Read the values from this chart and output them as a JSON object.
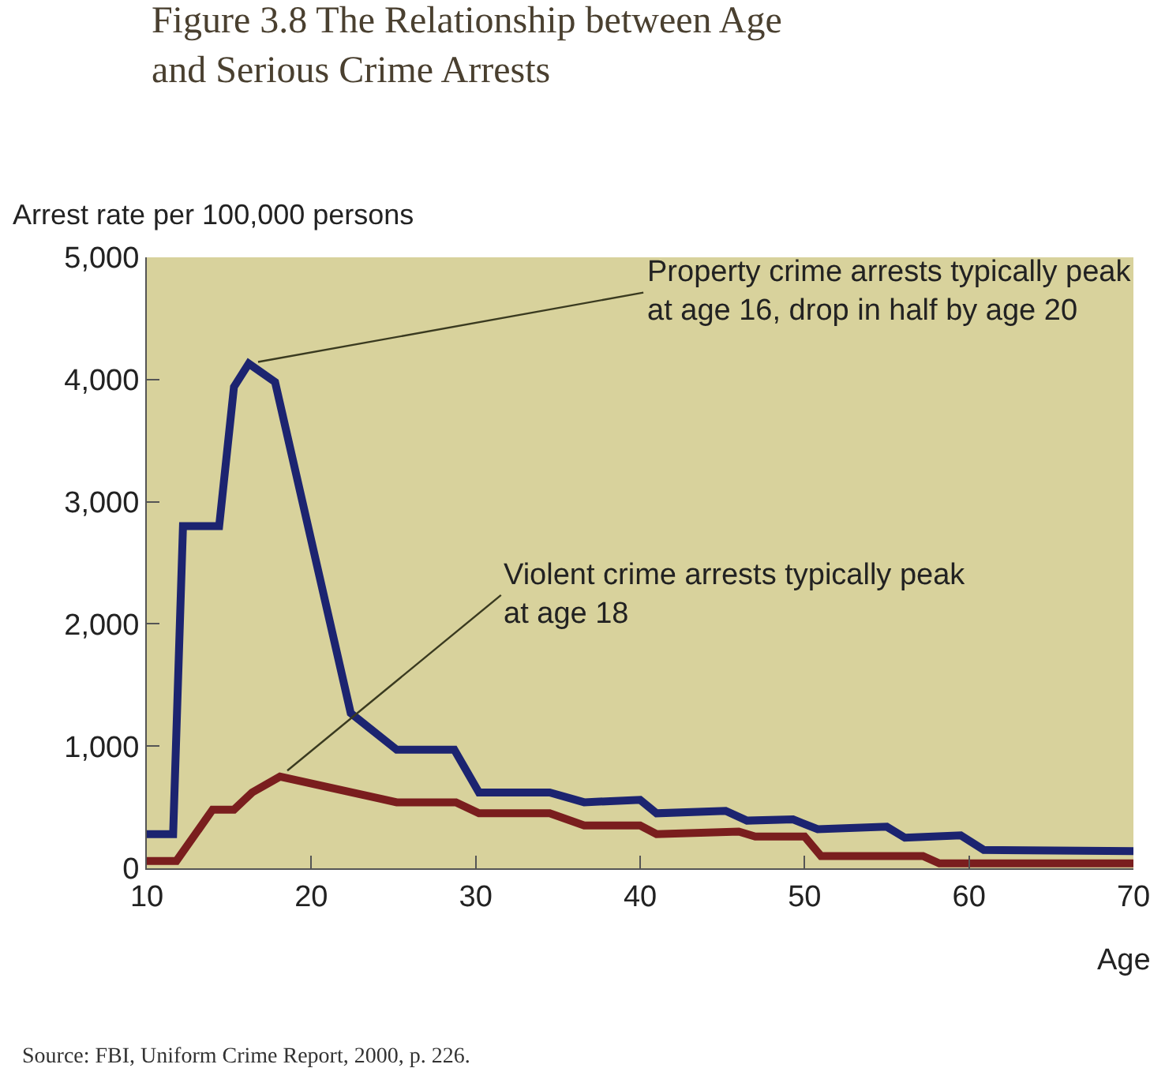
{
  "chart_data": {
    "type": "line",
    "title": "Figure 3.8 The Relationship between Age\nand Serious Crime Arrests",
    "ylabel": "Arrest rate per 100,000 persons",
    "xlabel": "Age",
    "series": [
      {
        "color": "#1c2470",
        "x": [
          10,
          11.6,
          12.2,
          14.4,
          15.3,
          16.2,
          17.8,
          22.4,
          25.2,
          28.7,
          30.2,
          34.5,
          36.6,
          40,
          41,
          45.2,
          46.5,
          49.3,
          50.8,
          55,
          56.1,
          59.5,
          60.9,
          70
        ],
        "values": [
          280,
          280,
          2800,
          2800,
          3940,
          4130,
          3980,
          1270,
          970,
          970,
          620,
          620,
          540,
          560,
          450,
          470,
          390,
          400,
          320,
          340,
          250,
          270,
          150,
          140
        ]
      },
      {
        "color": "#7a1e1e",
        "x": [
          10,
          11.8,
          14,
          15.3,
          16.4,
          18.1,
          25.2,
          28.8,
          30.2,
          34.5,
          36.6,
          40,
          41,
          46,
          47,
          50,
          51,
          57.2,
          58.2,
          70
        ],
        "values": [
          60,
          60,
          480,
          480,
          620,
          750,
          540,
          540,
          450,
          450,
          350,
          350,
          280,
          300,
          260,
          260,
          100,
          100,
          40,
          40
        ]
      }
    ],
    "xlim": [
      10,
      70
    ],
    "xticks": [
      10,
      20,
      30,
      40,
      50,
      60,
      70
    ],
    "ylim": [
      0,
      5000
    ],
    "yticks": [
      0,
      {
        "value": 1000,
        "label": "1,000"
      },
      {
        "value": 2000,
        "label": "2,000"
      },
      {
        "value": 3000,
        "label": "3,000"
      },
      {
        "value": 4000,
        "label": "4,000"
      },
      {
        "value": 5000,
        "label": "5,000"
      }
    ],
    "grid": false,
    "annotations": [
      {
        "text": "Property crime arrests typically peak\nat age 16, drop in half by age 20",
        "x": 16.2,
        "y": 4130
      },
      {
        "text": "Violent crime arrests typically peak\nat age 18",
        "x": 18.1,
        "y": 750
      },
      "Source: FBI, Uniform Crime Report, 2000, p. 226."
    ]
  }
}
